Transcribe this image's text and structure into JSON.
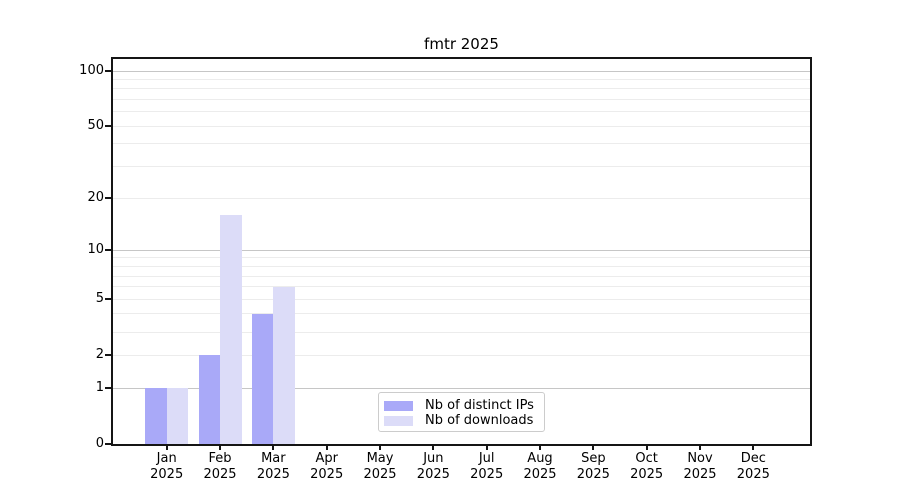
{
  "chart_data": {
    "type": "bar",
    "title": "fmtr 2025",
    "x_tick_months": [
      "Jan",
      "Feb",
      "Mar",
      "Apr",
      "May",
      "Jun",
      "Jul",
      "Aug",
      "Sep",
      "Oct",
      "Nov",
      "Dec"
    ],
    "x_tick_year": "2025",
    "series": [
      {
        "name": "Nb of distinct IPs",
        "color": "#a9a9f8",
        "values": [
          1,
          2,
          4,
          0,
          0,
          0,
          0,
          0,
          0,
          0,
          0,
          0
        ]
      },
      {
        "name": "Nb of downloads",
        "color": "#dcdcf8",
        "values": [
          1,
          16,
          6,
          0,
          0,
          0,
          0,
          0,
          0,
          0,
          0,
          0
        ]
      }
    ],
    "y_axis": {
      "scale": "log1p",
      "tick_labels": [
        0,
        1,
        2,
        5,
        10,
        20,
        50,
        100
      ],
      "major_gridlines": [
        1,
        10,
        100
      ],
      "minor_gridlines": [
        2,
        3,
        4,
        5,
        6,
        7,
        8,
        9,
        20,
        30,
        40,
        50,
        60,
        70,
        80,
        90
      ],
      "ylim": [
        0,
        116
      ]
    },
    "grid": "on",
    "legend_position": "lower center",
    "colors": {
      "axis": "#151515",
      "major_grid": "#c6c6c6",
      "minor_grid": "#ececec",
      "legend_border": "#cccccc",
      "background": "#ffffff",
      "text": "#000000"
    }
  }
}
